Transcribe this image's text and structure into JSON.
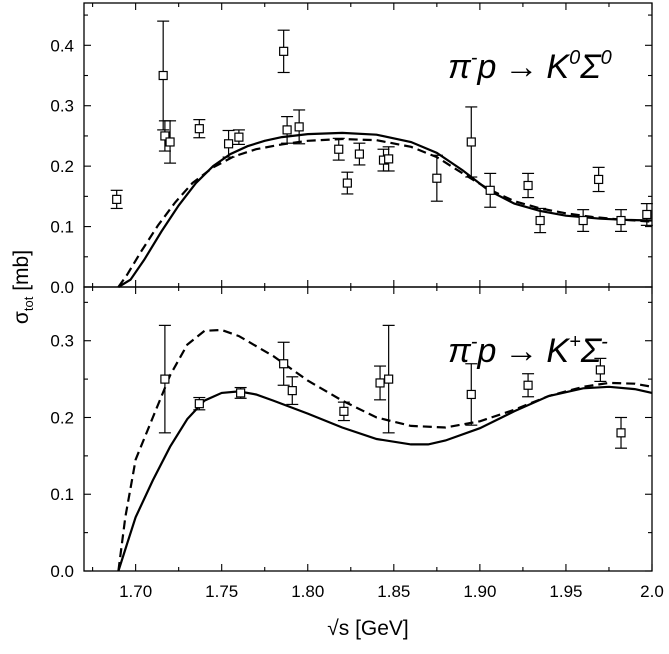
{
  "chart_data": {
    "type": "scatter",
    "xlabel": "√s [GeV]",
    "ylabel_main": "σ",
    "ylabel_sub": "tot",
    "ylabel_unit": " [mb]",
    "xlim": [
      1.67,
      2.0
    ],
    "x_ticks": [
      1.7,
      1.75,
      1.8,
      1.85,
      1.9,
      1.95,
      2.0
    ],
    "x_tick_labels": [
      "1.70",
      "1.75",
      "1.80",
      "1.85",
      "1.90",
      "1.95",
      "2.0"
    ],
    "panels": [
      {
        "name": "top",
        "reaction": {
          "a": "π",
          "a_sup": "-",
          "b": "p",
          "arrow": "→",
          "c": "K",
          "c_sup": "0",
          "d": "Σ",
          "d_sup": "0"
        },
        "ylim": [
          0,
          0.47
        ],
        "y_ticks": [
          0.0,
          0.1,
          0.2,
          0.3,
          0.4
        ],
        "y_tick_labels": [
          "0.0",
          "0.1",
          "0.2",
          "0.3",
          "0.4"
        ],
        "points": [
          {
            "x": 1.689,
            "y": 0.145,
            "err": 0.015
          },
          {
            "x": 1.716,
            "y": 0.35,
            "err": 0.09
          },
          {
            "x": 1.717,
            "y": 0.25,
            "err": 0.025
          },
          {
            "x": 1.72,
            "y": 0.24,
            "err": 0.035
          },
          {
            "x": 1.737,
            "y": 0.262,
            "err": 0.015
          },
          {
            "x": 1.754,
            "y": 0.237,
            "err": 0.022
          },
          {
            "x": 1.76,
            "y": 0.248,
            "err": 0.012
          },
          {
            "x": 1.786,
            "y": 0.39,
            "err": 0.035
          },
          {
            "x": 1.788,
            "y": 0.26,
            "err": 0.022
          },
          {
            "x": 1.795,
            "y": 0.265,
            "err": 0.028
          },
          {
            "x": 1.818,
            "y": 0.228,
            "err": 0.018
          },
          {
            "x": 1.823,
            "y": 0.172,
            "err": 0.018
          },
          {
            "x": 1.83,
            "y": 0.22,
            "err": 0.018
          },
          {
            "x": 1.844,
            "y": 0.21,
            "err": 0.018
          },
          {
            "x": 1.847,
            "y": 0.212,
            "err": 0.02
          },
          {
            "x": 1.875,
            "y": 0.18,
            "err": 0.038
          },
          {
            "x": 1.895,
            "y": 0.24,
            "err": 0.058
          },
          {
            "x": 1.906,
            "y": 0.16,
            "err": 0.028
          },
          {
            "x": 1.928,
            "y": 0.168,
            "err": 0.02
          },
          {
            "x": 1.935,
            "y": 0.11,
            "err": 0.02
          },
          {
            "x": 1.96,
            "y": 0.11,
            "err": 0.018
          },
          {
            "x": 1.969,
            "y": 0.178,
            "err": 0.02
          },
          {
            "x": 1.982,
            "y": 0.11,
            "err": 0.018
          },
          {
            "x": 1.997,
            "y": 0.12,
            "err": 0.018
          }
        ],
        "solid_curve": [
          [
            1.69,
            0.0
          ],
          [
            1.697,
            0.012
          ],
          [
            1.705,
            0.045
          ],
          [
            1.715,
            0.092
          ],
          [
            1.725,
            0.135
          ],
          [
            1.735,
            0.172
          ],
          [
            1.745,
            0.2
          ],
          [
            1.755,
            0.22
          ],
          [
            1.765,
            0.233
          ],
          [
            1.775,
            0.242
          ],
          [
            1.785,
            0.248
          ],
          [
            1.8,
            0.253
          ],
          [
            1.82,
            0.255
          ],
          [
            1.84,
            0.252
          ],
          [
            1.86,
            0.24
          ],
          [
            1.875,
            0.222
          ],
          [
            1.89,
            0.193
          ],
          [
            1.905,
            0.16
          ],
          [
            1.92,
            0.138
          ],
          [
            1.935,
            0.126
          ],
          [
            1.95,
            0.118
          ],
          [
            1.97,
            0.113
          ],
          [
            1.985,
            0.111
          ],
          [
            2.0,
            0.11
          ]
        ],
        "dashed_curve": [
          [
            1.69,
            0.0
          ],
          [
            1.695,
            0.02
          ],
          [
            1.703,
            0.058
          ],
          [
            1.713,
            0.102
          ],
          [
            1.723,
            0.14
          ],
          [
            1.733,
            0.172
          ],
          [
            1.745,
            0.198
          ],
          [
            1.757,
            0.216
          ],
          [
            1.77,
            0.228
          ],
          [
            1.785,
            0.236
          ],
          [
            1.8,
            0.242
          ],
          [
            1.82,
            0.245
          ],
          [
            1.84,
            0.243
          ],
          [
            1.86,
            0.232
          ],
          [
            1.875,
            0.215
          ],
          [
            1.89,
            0.188
          ],
          [
            1.905,
            0.162
          ],
          [
            1.92,
            0.142
          ],
          [
            1.935,
            0.13
          ],
          [
            1.95,
            0.122
          ],
          [
            1.965,
            0.116
          ],
          [
            1.98,
            0.112
          ],
          [
            2.0,
            0.108
          ]
        ]
      },
      {
        "name": "bottom",
        "reaction": {
          "a": "π",
          "a_sup": "-",
          "b": "p",
          "arrow": "→",
          "c": "K",
          "c_sup": "+",
          "d": "Σ",
          "d_sup": "-"
        },
        "ylim": [
          0,
          0.37
        ],
        "y_ticks": [
          0.0,
          0.1,
          0.2,
          0.3
        ],
        "y_tick_labels": [
          "0.0",
          "0.1",
          "0.2",
          "0.3"
        ],
        "points": [
          {
            "x": 1.717,
            "y": 0.25,
            "err": 0.07
          },
          {
            "x": 1.737,
            "y": 0.218,
            "err": 0.008
          },
          {
            "x": 1.761,
            "y": 0.232,
            "err": 0.007
          },
          {
            "x": 1.786,
            "y": 0.27,
            "err": 0.028
          },
          {
            "x": 1.791,
            "y": 0.235,
            "err": 0.018
          },
          {
            "x": 1.821,
            "y": 0.208,
            "err": 0.012
          },
          {
            "x": 1.842,
            "y": 0.245,
            "err": 0.022
          },
          {
            "x": 1.847,
            "y": 0.25,
            "err": 0.07
          },
          {
            "x": 1.895,
            "y": 0.23,
            "err": 0.04
          },
          {
            "x": 1.928,
            "y": 0.242,
            "err": 0.015
          },
          {
            "x": 1.97,
            "y": 0.262,
            "err": 0.015
          },
          {
            "x": 1.982,
            "y": 0.18,
            "err": 0.02
          }
        ],
        "solid_curve": [
          [
            1.69,
            0.0
          ],
          [
            1.695,
            0.035
          ],
          [
            1.7,
            0.07
          ],
          [
            1.71,
            0.118
          ],
          [
            1.72,
            0.162
          ],
          [
            1.73,
            0.198
          ],
          [
            1.74,
            0.222
          ],
          [
            1.75,
            0.232
          ],
          [
            1.76,
            0.234
          ],
          [
            1.77,
            0.23
          ],
          [
            1.78,
            0.222
          ],
          [
            1.8,
            0.205
          ],
          [
            1.82,
            0.187
          ],
          [
            1.84,
            0.172
          ],
          [
            1.86,
            0.165
          ],
          [
            1.87,
            0.165
          ],
          [
            1.88,
            0.17
          ],
          [
            1.9,
            0.186
          ],
          [
            1.92,
            0.208
          ],
          [
            1.94,
            0.228
          ],
          [
            1.96,
            0.238
          ],
          [
            1.975,
            0.24
          ],
          [
            1.99,
            0.237
          ],
          [
            2.0,
            0.232
          ]
        ],
        "dashed_curve": [
          [
            1.69,
            0.0
          ],
          [
            1.694,
            0.07
          ],
          [
            1.698,
            0.12
          ],
          [
            1.7,
            0.145
          ],
          [
            1.71,
            0.2
          ],
          [
            1.72,
            0.255
          ],
          [
            1.73,
            0.295
          ],
          [
            1.74,
            0.313
          ],
          [
            1.75,
            0.314
          ],
          [
            1.76,
            0.306
          ],
          [
            1.78,
            0.28
          ],
          [
            1.8,
            0.248
          ],
          [
            1.82,
            0.222
          ],
          [
            1.84,
            0.2
          ],
          [
            1.86,
            0.189
          ],
          [
            1.88,
            0.187
          ],
          [
            1.9,
            0.195
          ],
          [
            1.92,
            0.21
          ],
          [
            1.94,
            0.228
          ],
          [
            1.96,
            0.24
          ],
          [
            1.975,
            0.245
          ],
          [
            1.99,
            0.244
          ],
          [
            2.0,
            0.24
          ]
        ]
      }
    ]
  }
}
